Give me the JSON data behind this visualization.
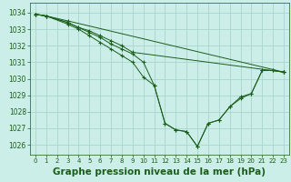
{
  "background_color": "#cceee8",
  "grid_color": "#aad4ce",
  "line_color": "#1a5e1a",
  "xlabel": "Graphe pression niveau de la mer (hPa)",
  "xlabel_fontsize": 7.5,
  "xlim": [
    -0.5,
    23.5
  ],
  "ylim": [
    1025.4,
    1034.6
  ],
  "yticks": [
    1026,
    1027,
    1028,
    1029,
    1030,
    1031,
    1032,
    1033,
    1034
  ],
  "xticks": [
    0,
    1,
    2,
    3,
    4,
    5,
    6,
    7,
    8,
    9,
    10,
    11,
    12,
    13,
    14,
    15,
    16,
    17,
    18,
    19,
    20,
    21,
    22,
    23
  ],
  "series": [
    {
      "x": [
        0,
        1,
        3,
        23
      ],
      "y": [
        1033.9,
        1033.8,
        1033.5,
        1030.4
      ]
    },
    {
      "x": [
        0,
        1,
        3,
        4,
        5,
        6,
        7,
        8,
        9,
        23
      ],
      "y": [
        1033.9,
        1033.8,
        1033.4,
        1033.1,
        1032.9,
        1032.6,
        1032.3,
        1032.0,
        1031.6,
        1030.4
      ]
    },
    {
      "x": [
        0,
        1,
        3,
        4,
        5,
        6,
        7,
        8,
        9,
        10,
        11,
        12,
        13,
        14,
        15,
        16,
        17,
        18,
        19,
        20,
        21,
        22,
        23
      ],
      "y": [
        1033.9,
        1033.8,
        1033.3,
        1033.0,
        1032.6,
        1032.2,
        1031.8,
        1031.4,
        1031.0,
        1030.1,
        1029.6,
        1027.3,
        1026.9,
        1026.8,
        1025.9,
        1027.3,
        1027.5,
        1028.3,
        1028.9,
        1029.1,
        1030.5,
        1030.5,
        1030.4
      ]
    },
    {
      "x": [
        0,
        1,
        3,
        4,
        5,
        6,
        7,
        8,
        9,
        10,
        11,
        12,
        13,
        14,
        15,
        16,
        17,
        18,
        19,
        20,
        21,
        22,
        23
      ],
      "y": [
        1033.9,
        1033.8,
        1033.4,
        1033.1,
        1032.8,
        1032.5,
        1032.1,
        1031.8,
        1031.5,
        1031.0,
        1029.6,
        1027.3,
        1026.9,
        1026.8,
        1025.9,
        1027.3,
        1027.5,
        1028.3,
        1028.8,
        1029.1,
        1030.5,
        1030.5,
        1030.4
      ]
    }
  ]
}
